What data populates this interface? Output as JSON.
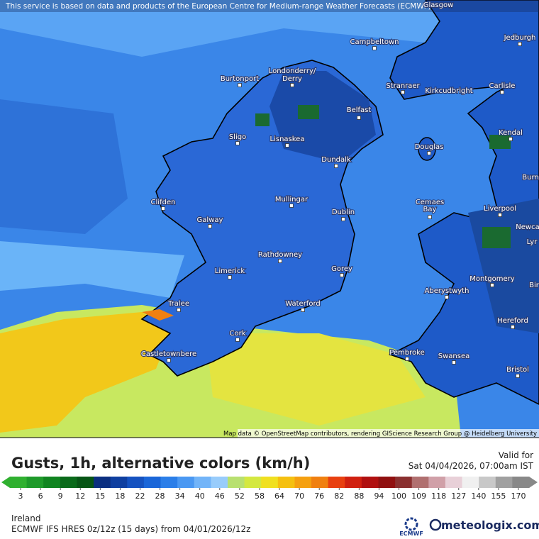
{
  "header": {
    "attribution": "This service is based on data and products of the European Centre for Medium-range Weather Forecasts (ECMWF)"
  },
  "map": {
    "credit": "Map data © OpenStreetMap contributors, rendering GIScience Research Group @ Heidelberg University",
    "cities": [
      "Glasgow",
      "Jedburgh",
      "Campbeltown",
      "Burtonport",
      "Londonderry/",
      "Derry",
      "Stranraer",
      "Kirkcudbright",
      "Carlisle",
      "Belfast",
      "Sligo",
      "Lisnaskea",
      "Kendal",
      "Douglas",
      "Dundalk",
      "Burn",
      "Mullingar",
      "Clifden",
      "Liverpool",
      "Cemaes",
      "Bay",
      "Dublin",
      "Galway",
      "Newca",
      "Lyr",
      "Rathdowney",
      "Gorey",
      "Limerick",
      "Montgomery",
      "Bir",
      "Aberystwyth",
      "Tralee",
      "Waterford",
      "Hereford",
      "Cork",
      "Pembroke",
      "Swansea",
      "Castletownbere",
      "Bristol"
    ]
  },
  "legend": {
    "title": "Gusts, 1h, alternative colors (km/h)",
    "valid_label": "Valid for",
    "valid_time": "Sat 04/04/2026, 07:00am IST",
    "ticks": [
      3,
      6,
      9,
      12,
      15,
      18,
      22,
      28,
      34,
      40,
      46,
      52,
      58,
      64,
      70,
      76,
      82,
      88,
      94,
      100,
      109,
      118,
      127,
      140,
      155,
      170
    ],
    "colors": [
      "#30b030",
      "#1e9a2a",
      "#108420",
      "#0a6a1a",
      "#075515",
      "#0b2f80",
      "#0f3fa0",
      "#1552c0",
      "#1a66d8",
      "#2b7ee8",
      "#4a98f2",
      "#72b4f8",
      "#98ccfb",
      "#b8e070",
      "#d4e840",
      "#f0e020",
      "#f5c010",
      "#f5a010",
      "#f08010",
      "#e84010",
      "#d02010",
      "#b01010",
      "#901010",
      "#8a3030",
      "#b07070",
      "#d0a0a8",
      "#e8d0d8",
      "#f0f0f0",
      "#c8c8c8",
      "#a0a0a0",
      "#888888"
    ]
  },
  "footer": {
    "region": "Ireland",
    "model": "ECMWF IFS HRES 0z/12z (15 days) from  04/01/2026/12z",
    "ecmwf": "ECMWF",
    "brand": "meteologix.com"
  }
}
